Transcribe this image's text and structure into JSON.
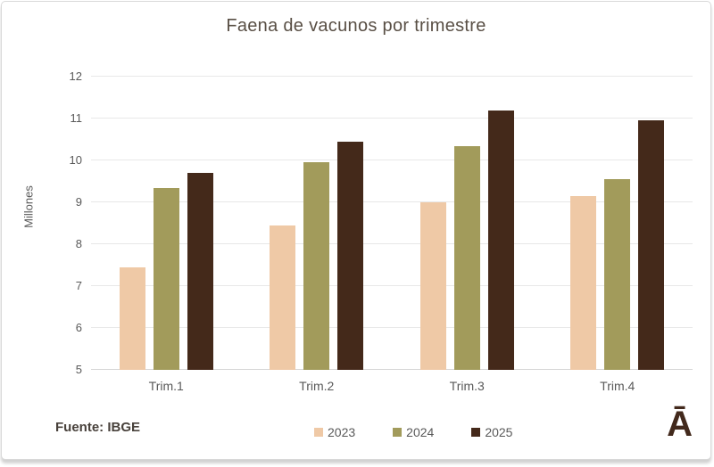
{
  "source": "Fuente: IBGE",
  "logo_glyph": "Ā",
  "chart_data": {
    "type": "bar",
    "title": "Faena de vacunos por trimestre",
    "categories": [
      "Trim.1",
      "Trim.2",
      "Trim.3",
      "Trim.4"
    ],
    "series": [
      {
        "name": "2023",
        "color": "#EFC9A6",
        "values": [
          7.45,
          8.45,
          9.0,
          9.15
        ]
      },
      {
        "name": "2024",
        "color": "#A29B5B",
        "values": [
          9.35,
          9.95,
          10.35,
          9.55
        ]
      },
      {
        "name": "2025",
        "color": "#44291A",
        "values": [
          9.7,
          10.45,
          11.2,
          10.95
        ]
      }
    ],
    "xlabel": "",
    "ylabel": "Millones",
    "ylim": [
      5,
      12
    ],
    "yticks": [
      5,
      6,
      7,
      8,
      9,
      10,
      11,
      12
    ],
    "grid": true,
    "legend_position": "bottom"
  },
  "colors": {
    "title_text": "#594F45",
    "axis_text": "#595959",
    "gridline": "#E8E8E8",
    "baseline": "#D6D6D6",
    "card_border": "#D9D9D9",
    "logo": "#42291C"
  }
}
